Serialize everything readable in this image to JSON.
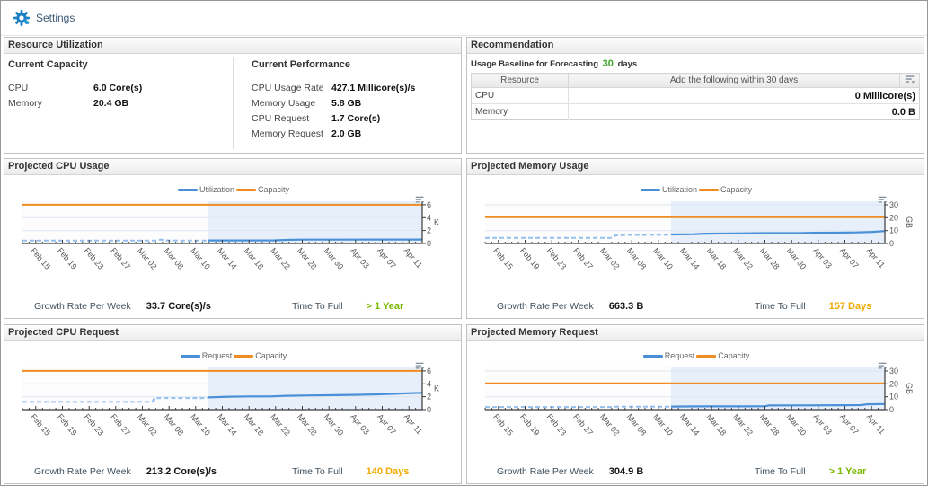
{
  "topbar": {
    "title": "Settings"
  },
  "colors": {
    "series_line": "#4a90d9",
    "history_line": "#94bfed",
    "capacity_line": "#ef8d22",
    "forecast_bg": "#e7f0fa",
    "green": "#7ab800",
    "amber": "#f0ab00",
    "baseline_green": "#3fa32e"
  },
  "resource_utilization": {
    "title": "Resource Utilization",
    "capacity": {
      "title": "Current Capacity",
      "rows": [
        {
          "label": "CPU",
          "value": "6.0 Core(s)"
        },
        {
          "label": "Memory",
          "value": "20.4 GB"
        }
      ]
    },
    "performance": {
      "title": "Current Performance",
      "rows": [
        {
          "label": "CPU Usage Rate",
          "value": "427.1 Millicore(s)/s"
        },
        {
          "label": "Memory Usage",
          "value": "5.8 GB"
        },
        {
          "label": "CPU Request",
          "value": "1.7 Core(s)"
        },
        {
          "label": "Memory Request",
          "value": "2.0 GB"
        }
      ]
    }
  },
  "recommendation": {
    "title": "Recommendation",
    "baseline_prefix": "Usage Baseline for Forecasting",
    "baseline_days": "30",
    "baseline_suffix": "days",
    "table": {
      "col_resource": "Resource",
      "col_add": "Add the following within 30 days",
      "rows": [
        {
          "resource": "CPU",
          "value": "0 Millicore(s)"
        },
        {
          "resource": "Memory",
          "value": "0.0 B"
        }
      ]
    }
  },
  "chart_data": [
    {
      "type": "line",
      "title": "Projected CPU Usage",
      "legend": [
        "Utilization",
        "Capacity"
      ],
      "x_labels": [
        "Feb 15",
        "Feb 19",
        "Feb 23",
        "Feb 27",
        "Mar 02",
        "Mar 08",
        "Mar 10",
        "Mar 14",
        "Mar 18",
        "Mar 22",
        "Mar 28",
        "Mar 30",
        "Apr 03",
        "Apr 07",
        "Apr 11"
      ],
      "y_ticks": [
        0,
        2,
        4,
        6
      ],
      "y_axis_top": 6.55,
      "unit": "K",
      "capacity": 6.0,
      "forecast_start": 0.465,
      "history": [
        [
          0,
          0.45
        ],
        [
          0.08,
          0.45
        ],
        [
          0.16,
          0.44
        ],
        [
          0.24,
          0.44
        ],
        [
          0.3,
          0.44
        ],
        [
          0.335,
          0.44
        ],
        [
          0.345,
          0.62
        ],
        [
          0.36,
          0.47
        ],
        [
          0.4,
          0.45
        ],
        [
          0.465,
          0.45
        ]
      ],
      "forecast": [
        [
          0.465,
          0.48
        ],
        [
          0.55,
          0.48
        ],
        [
          0.63,
          0.49
        ],
        [
          0.67,
          0.57
        ],
        [
          0.7,
          0.6
        ],
        [
          0.8,
          0.6
        ],
        [
          0.9,
          0.61
        ],
        [
          1,
          0.62
        ]
      ],
      "growth_label": "Growth Rate Per Week",
      "growth_value": "33.7 Core(s)/s",
      "ttf_label": "Time To Full",
      "ttf_value": "> 1 Year",
      "ttf_color": "#7ab800"
    },
    {
      "type": "line",
      "title": "Projected Memory Usage",
      "legend": [
        "Utilization",
        "Capacity"
      ],
      "x_labels": [
        "Feb 15",
        "Feb 19",
        "Feb 23",
        "Feb 27",
        "Mar 02",
        "Mar 08",
        "Mar 10",
        "Mar 14",
        "Mar 18",
        "Mar 22",
        "Mar 28",
        "Mar 30",
        "Apr 03",
        "Apr 07",
        "Apr 11"
      ],
      "y_ticks": [
        0,
        10,
        20,
        30
      ],
      "y_axis_top": 32.8,
      "unit": "GB",
      "capacity": 20.4,
      "forecast_start": 0.465,
      "history": [
        [
          0,
          4.3
        ],
        [
          0.1,
          4.3
        ],
        [
          0.2,
          4.4
        ],
        [
          0.3,
          4.4
        ],
        [
          0.32,
          4.4
        ],
        [
          0.325,
          6.2
        ],
        [
          0.36,
          6.6
        ],
        [
          0.42,
          6.7
        ],
        [
          0.465,
          6.7
        ]
      ],
      "forecast": [
        [
          0.465,
          7.0
        ],
        [
          0.52,
          7.2
        ],
        [
          0.55,
          7.6
        ],
        [
          0.62,
          7.8
        ],
        [
          0.7,
          8.0
        ],
        [
          0.78,
          8.0
        ],
        [
          0.82,
          8.3
        ],
        [
          0.88,
          8.4
        ],
        [
          0.93,
          8.6
        ],
        [
          0.97,
          9.0
        ],
        [
          1,
          9.6
        ]
      ],
      "growth_label": "Growth Rate Per Week",
      "growth_value": "663.3 B",
      "ttf_label": "Time To Full",
      "ttf_value": "157 Days",
      "ttf_color": "#f0ab00"
    },
    {
      "type": "line",
      "title": "Projected CPU Request",
      "legend": [
        "Request",
        "Capacity"
      ],
      "x_labels": [
        "Feb 15",
        "Feb 19",
        "Feb 23",
        "Feb 27",
        "Mar 02",
        "Mar 08",
        "Mar 10",
        "Mar 14",
        "Mar 18",
        "Mar 22",
        "Mar 28",
        "Mar 30",
        "Apr 03",
        "Apr 07",
        "Apr 11"
      ],
      "y_ticks": [
        0,
        2,
        4,
        6
      ],
      "y_axis_top": 6.55,
      "unit": "K",
      "capacity": 6.0,
      "forecast_start": 0.465,
      "history": [
        [
          0,
          1.2
        ],
        [
          0.1,
          1.2
        ],
        [
          0.2,
          1.2
        ],
        [
          0.3,
          1.2
        ],
        [
          0.325,
          1.2
        ],
        [
          0.33,
          1.8
        ],
        [
          0.4,
          1.8
        ],
        [
          0.465,
          1.8
        ]
      ],
      "forecast": [
        [
          0.465,
          1.9
        ],
        [
          0.52,
          2.0
        ],
        [
          0.57,
          2.05
        ],
        [
          0.62,
          2.05
        ],
        [
          0.66,
          2.15
        ],
        [
          0.72,
          2.2
        ],
        [
          0.78,
          2.25
        ],
        [
          0.84,
          2.3
        ],
        [
          0.88,
          2.35
        ],
        [
          0.93,
          2.45
        ],
        [
          0.97,
          2.55
        ],
        [
          1,
          2.6
        ]
      ],
      "growth_label": "Growth Rate Per Week",
      "growth_value": "213.2 Core(s)/s",
      "ttf_label": "Time To Full",
      "ttf_value": "140 Days",
      "ttf_color": "#f0ab00"
    },
    {
      "type": "line",
      "title": "Projected Memory Request",
      "legend": [
        "Request",
        "Capacity"
      ],
      "x_labels": [
        "Feb 15",
        "Feb 19",
        "Feb 23",
        "Feb 27",
        "Mar 02",
        "Mar 08",
        "Mar 10",
        "Mar 14",
        "Mar 18",
        "Mar 22",
        "Mar 28",
        "Mar 30",
        "Apr 03",
        "Apr 07",
        "Apr 11"
      ],
      "y_ticks": [
        0,
        10,
        20,
        30
      ],
      "y_axis_top": 32.8,
      "unit": "GB",
      "capacity": 20.4,
      "forecast_start": 0.465,
      "history": [
        [
          0,
          2.0
        ],
        [
          0.1,
          2.0
        ],
        [
          0.2,
          2.0
        ],
        [
          0.3,
          2.0
        ],
        [
          0.32,
          2.0
        ],
        [
          0.325,
          2.3
        ],
        [
          0.4,
          2.3
        ],
        [
          0.465,
          2.3
        ]
      ],
      "forecast": [
        [
          0.465,
          2.4
        ],
        [
          0.55,
          2.5
        ],
        [
          0.65,
          2.5
        ],
        [
          0.7,
          2.6
        ],
        [
          0.71,
          3.2
        ],
        [
          0.8,
          3.3
        ],
        [
          0.9,
          3.4
        ],
        [
          0.94,
          3.5
        ],
        [
          0.955,
          4.1
        ],
        [
          1,
          4.3
        ]
      ],
      "growth_label": "Growth Rate Per Week",
      "growth_value": "304.9 B",
      "ttf_label": "Time To Full",
      "ttf_value": "> 1 Year",
      "ttf_color": "#7ab800"
    }
  ]
}
